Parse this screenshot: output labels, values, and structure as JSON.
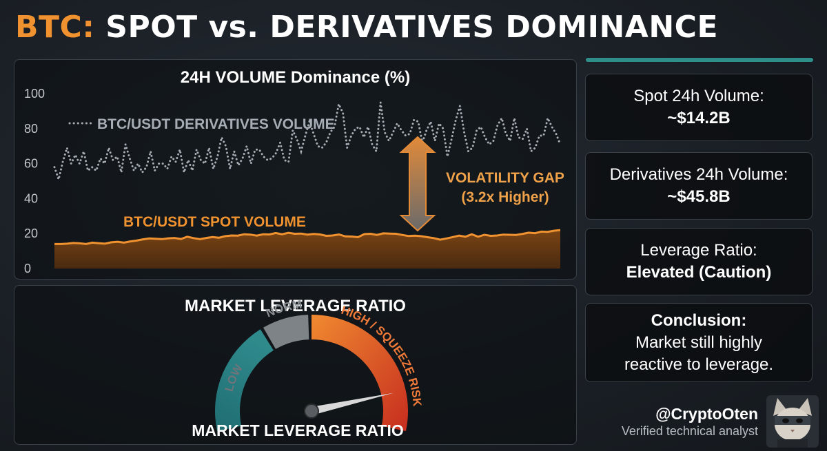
{
  "header": {
    "title_accent": "BTC:",
    "title_rest": "SPOT vs. DERIVATIVES DOMINANCE"
  },
  "colors": {
    "accent": "#f0922f",
    "derivatives_line": "#a7adb4",
    "spot_line": "#f0922f",
    "spot_fill": "#6b3b12",
    "teal": "#2e8f8a"
  },
  "chart_data": [
    {
      "type": "line",
      "title": "24H VOLUME Dominance (%)",
      "ylim": [
        0,
        100
      ],
      "yticks": [
        "0",
        "20",
        "40",
        "60",
        "80",
        "100"
      ],
      "grid": false,
      "series": [
        {
          "name": "BTC/USDT DERIVATIVES VOLUME",
          "style": "dotted",
          "values": [
            58,
            51,
            61,
            69,
            60,
            65,
            60,
            67,
            56,
            58,
            56,
            63,
            60,
            69,
            62,
            64,
            55,
            71,
            63,
            56,
            60,
            55,
            58,
            67,
            56,
            60,
            60,
            57,
            64,
            61,
            68,
            55,
            62,
            56,
            68,
            62,
            60,
            69,
            57,
            64,
            75,
            70,
            57,
            67,
            59,
            63,
            70,
            60,
            68,
            68,
            64,
            62,
            63,
            66,
            72,
            62,
            61,
            79,
            74,
            67,
            76,
            84,
            77,
            70,
            69,
            72,
            78,
            81,
            94,
            89,
            69,
            76,
            80,
            81,
            75,
            81,
            71,
            67,
            95,
            78,
            73,
            78,
            83,
            79,
            76,
            77,
            85,
            84,
            72,
            79,
            84,
            73,
            83,
            80,
            64,
            74,
            85,
            93,
            78,
            67,
            69,
            79,
            81,
            75,
            71,
            73,
            82,
            86,
            77,
            73,
            86,
            75,
            74,
            80,
            67,
            69,
            76,
            76,
            86,
            81,
            77,
            71
          ]
        },
        {
          "name": "BTC/USDT SPOT VOLUME",
          "style": "area",
          "values": [
            14,
            14,
            14.2,
            14.6,
            14.4,
            14,
            14.8,
            14.5,
            14.2,
            15,
            15.3,
            14.8,
            15.5,
            16,
            16.7,
            17.2,
            17,
            16.8,
            17.3,
            17.5,
            16.9,
            18.2,
            17.4,
            16.8,
            17.5,
            18,
            17.6,
            18.5,
            18.9,
            18.8,
            19.6,
            19.4,
            18.8,
            19.6,
            19.5,
            20.3,
            19.6,
            20.4,
            19.9,
            20,
            19.4,
            19.8,
            19.5,
            18.7,
            18.9,
            19.5,
            18.4,
            18.3,
            17.9,
            19.7,
            19.9,
            19.2,
            20.1,
            20,
            19.9,
            19.2,
            18.6,
            18.8,
            18.5,
            17.9,
            17.4,
            16.5,
            17.2,
            18,
            18.8,
            18.2,
            19.6,
            18.2,
            19.3,
            18.7,
            18.9,
            19.4,
            19.3,
            19.2,
            19.8,
            20.5,
            20.2,
            21.1,
            21,
            21.6,
            22
          ]
        }
      ],
      "annotation": {
        "label": "VOLATILITY GAP",
        "sublabel": "(3.2x Higher)"
      }
    },
    {
      "type": "gauge",
      "title": "MARKET LEVERAGE RATIO",
      "caption": "MARKET LEVERAGE RATIO",
      "segments": [
        {
          "label": "LOW",
          "color": "#2a7c7f"
        },
        {
          "label": "NORM",
          "color": "#7e8387"
        },
        {
          "label": "HIGH / SQUEEZE RISK",
          "color": "#e4602b"
        }
      ],
      "needle_value": 0.88
    }
  ],
  "cards": {
    "spot_label": "Spot 24h Volume:",
    "spot_value": "~$14.2B",
    "deriv_label": "Derivatives 24h Volume:",
    "deriv_value": "~$45.8B",
    "lev_label": "Leverage Ratio:",
    "lev_value": "Elevated (Caution)",
    "concl_label": "Conclusion:",
    "concl_line1": "Market still highly",
    "concl_line2": "reactive to leverage."
  },
  "author": {
    "handle": "@CryptoOten",
    "tagline": "Verified technical analyst",
    "avatar_icon": "ninja-cat-avatar"
  }
}
